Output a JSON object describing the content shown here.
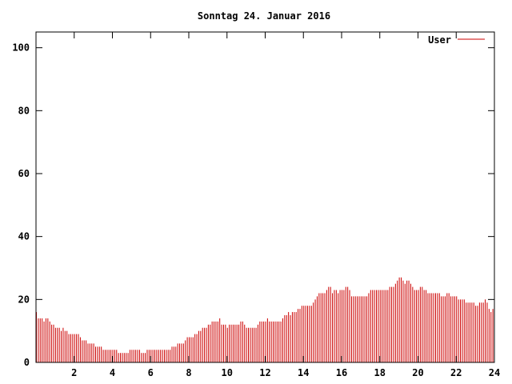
{
  "chart_data": {
    "type": "bar",
    "title": "Sonntag 24. Januar 2016",
    "xlabel": "",
    "ylabel": "",
    "xlim": [
      0,
      24
    ],
    "ylim": [
      0,
      105
    ],
    "xticks": [
      2,
      4,
      6,
      8,
      10,
      12,
      14,
      16,
      18,
      20,
      22,
      24
    ],
    "yticks": [
      0,
      20,
      40,
      60,
      80,
      100
    ],
    "grid": false,
    "legend_position": "top-right",
    "series": [
      {
        "name": "User",
        "color": "#cc0000",
        "interval_hours": 0.1,
        "values": [
          16,
          14,
          14,
          14,
          13,
          14,
          14,
          13,
          12,
          12,
          11,
          11,
          11,
          10,
          11,
          10,
          10,
          9,
          9,
          9,
          9,
          9,
          9,
          8,
          7,
          7,
          7,
          6,
          6,
          6,
          6,
          5,
          5,
          5,
          5,
          4,
          4,
          4,
          4,
          4,
          4,
          4,
          4,
          3,
          3,
          3,
          3,
          3,
          3,
          4,
          4,
          4,
          4,
          4,
          4,
          3,
          3,
          3,
          4,
          4,
          4,
          4,
          4,
          4,
          4,
          4,
          4,
          4,
          4,
          4,
          4,
          5,
          5,
          5,
          6,
          6,
          6,
          6,
          7,
          8,
          8,
          8,
          8,
          9,
          9,
          10,
          10,
          11,
          11,
          11,
          12,
          12,
          13,
          13,
          13,
          13,
          14,
          12,
          12,
          12,
          11,
          12,
          12,
          12,
          12,
          12,
          12,
          13,
          13,
          12,
          11,
          11,
          11,
          11,
          11,
          11,
          12,
          13,
          13,
          13,
          13,
          14,
          13,
          13,
          13,
          13,
          13,
          13,
          13,
          14,
          15,
          15,
          16,
          15,
          16,
          16,
          16,
          17,
          17,
          18,
          18,
          18,
          18,
          18,
          18,
          19,
          20,
          21,
          22,
          22,
          22,
          22,
          23,
          24,
          24,
          22,
          23,
          23,
          22,
          23,
          23,
          23,
          24,
          24,
          23,
          21,
          21,
          21,
          21,
          21,
          21,
          21,
          21,
          21,
          22,
          23,
          23,
          23,
          23,
          23,
          23,
          23,
          23,
          23,
          23,
          24,
          24,
          24,
          25,
          26,
          27,
          27,
          26,
          25,
          26,
          26,
          25,
          24,
          23,
          23,
          23,
          24,
          24,
          23,
          23,
          22,
          22,
          22,
          22,
          22,
          22,
          22,
          21,
          21,
          21,
          22,
          22,
          21,
          21,
          21,
          21,
          20,
          20,
          20,
          20,
          19,
          19,
          19,
          19,
          19,
          18,
          18,
          19,
          19,
          19,
          20,
          19,
          17,
          16,
          17,
          17
        ]
      }
    ]
  }
}
